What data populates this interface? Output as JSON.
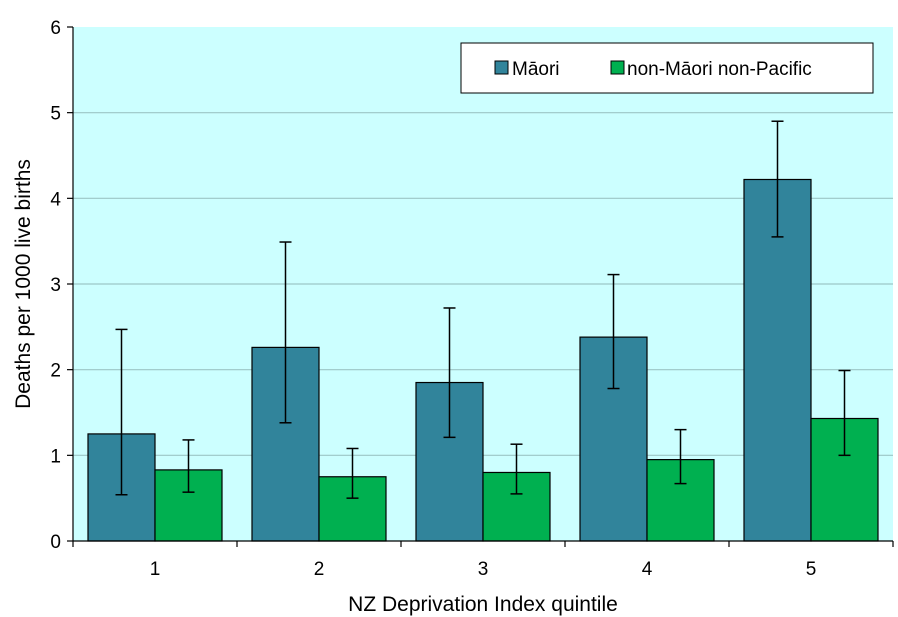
{
  "chart_data": {
    "type": "bar",
    "xlabel": "NZ Deprivation Index quintile",
    "ylabel": "Deaths per 1000 live births",
    "categories": [
      "1",
      "2",
      "3",
      "4",
      "5"
    ],
    "ylim": [
      0,
      6
    ],
    "yticks": [
      "0",
      "1",
      "2",
      "3",
      "4",
      "5",
      "6"
    ],
    "grid": true,
    "legend_position": "top-right",
    "plot_background": "#ccffff",
    "series": [
      {
        "name": "Māori",
        "color": "#31849b",
        "values": [
          1.25,
          2.26,
          1.85,
          2.38,
          4.22
        ],
        "err_low": [
          0.54,
          1.38,
          1.21,
          1.78,
          3.55
        ],
        "err_high": [
          2.47,
          3.49,
          2.72,
          3.11,
          4.9
        ]
      },
      {
        "name": "non-Māori non-Pacific",
        "color": "#00b050",
        "values": [
          0.83,
          0.75,
          0.8,
          0.95,
          1.43
        ],
        "err_low": [
          0.57,
          0.5,
          0.55,
          0.67,
          1.0
        ],
        "err_high": [
          1.18,
          1.08,
          1.13,
          1.3,
          1.99
        ]
      }
    ]
  }
}
